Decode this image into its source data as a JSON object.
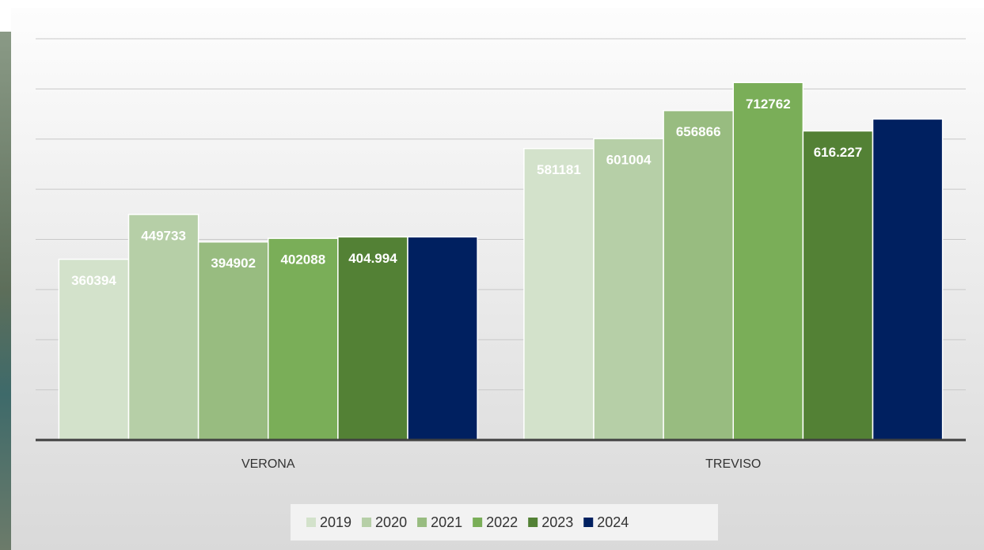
{
  "chart_data": {
    "type": "bar",
    "categories": [
      "VERONA",
      "TREVISO"
    ],
    "series": [
      {
        "name": "2019",
        "color": "#d3e2cb",
        "values": [
          360394,
          581181
        ]
      },
      {
        "name": "2020",
        "color": "#b6cfa7",
        "values": [
          449733,
          601004
        ]
      },
      {
        "name": "2021",
        "color": "#98bc80",
        "values": [
          394902,
          656866
        ]
      },
      {
        "name": "2022",
        "color": "#7aae58",
        "values": [
          402088,
          712762
        ]
      },
      {
        "name": "2023",
        "color": "#538135",
        "values": [
          404994,
          616227
        ],
        "value_labels": [
          "404.994",
          "616.227"
        ]
      },
      {
        "name": "2024",
        "color": "#002060",
        "values": [
          405000,
          640000
        ],
        "data_labels": false
      }
    ],
    "ylim": [
      0,
      800000
    ],
    "yticks": [
      0,
      100000,
      200000,
      300000,
      400000,
      500000,
      600000,
      700000,
      800000
    ],
    "grid": true,
    "legend": "bottom"
  }
}
